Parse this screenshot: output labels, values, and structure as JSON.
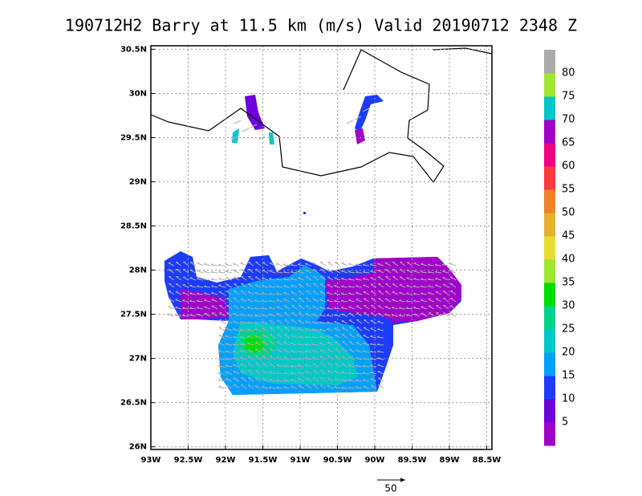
{
  "title": "190712H2 Barry at 11.5 km (m/s) Valid 20190712 2348 Z",
  "map": {
    "xlim": [
      -93.0,
      -88.43
    ],
    "ylim": [
      25.97,
      30.54
    ],
    "xticks": [
      {
        "value": -93,
        "label": "93W"
      },
      {
        "value": -92.5,
        "label": "92.5W"
      },
      {
        "value": -92,
        "label": "92W"
      },
      {
        "value": -91.5,
        "label": "91.5W"
      },
      {
        "value": -91,
        "label": "91W"
      },
      {
        "value": -90.5,
        "label": "90.5W"
      },
      {
        "value": -90,
        "label": "90W"
      },
      {
        "value": -89.5,
        "label": "89.5W"
      },
      {
        "value": -89,
        "label": "89W"
      },
      {
        "value": -88.5,
        "label": "88.5W"
      }
    ],
    "yticks": [
      {
        "value": 26,
        "label": "26N"
      },
      {
        "value": 26.5,
        "label": "26.5N"
      },
      {
        "value": 27,
        "label": "27N"
      },
      {
        "value": 27.5,
        "label": "27.5N"
      },
      {
        "value": 28,
        "label": "28N"
      },
      {
        "value": 28.5,
        "label": "28.5N"
      },
      {
        "value": 29,
        "label": "29N"
      },
      {
        "value": 29.5,
        "label": "29.5N"
      },
      {
        "value": 30,
        "label": "30N"
      },
      {
        "value": 30.5,
        "label": "30.5N"
      }
    ],
    "grid": true
  },
  "colorbar": {
    "levels": [
      5,
      10,
      15,
      20,
      25,
      30,
      35,
      40,
      45,
      50,
      55,
      60,
      65,
      70,
      75,
      80
    ],
    "colors": [
      "#a000c8",
      "#6e00dc",
      "#1e3cff",
      "#00a0ff",
      "#00c8c8",
      "#00d28c",
      "#00dc00",
      "#a0e632",
      "#e6dc32",
      "#e6af2d",
      "#f08228",
      "#fa3c3c",
      "#f00082",
      "#a000c8",
      "#00c8c8",
      "#a0e632",
      "#aaaaaa"
    ]
  },
  "reference_vector_label": "50"
}
